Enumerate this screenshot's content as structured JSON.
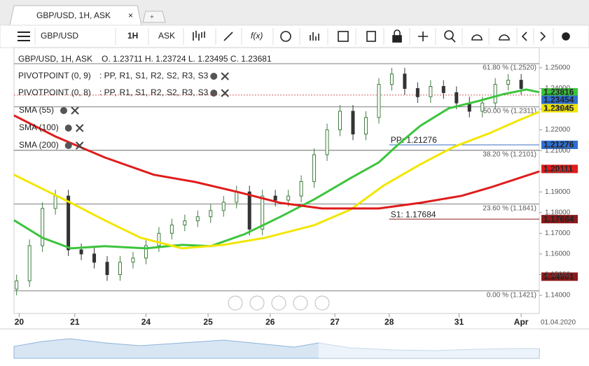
{
  "tab": {
    "title": "GBP/USD, 1H, ASK",
    "close": "×",
    "add": "+"
  },
  "toolbar": {
    "symbol": "GBP/USD",
    "interval": "1H",
    "price_type": "ASK",
    "function": "f(x)"
  },
  "legend": {
    "instrument": "GBP/USD, 1H, ASK",
    "ohlc": "O. 1.23711 H. 1.23724 L. 1.23495 C. 1.23681",
    "pivots": [
      {
        "name": "PIVOTPOINT (0, 9)"
      },
      {
        "name": "PIVOTPOINT (0, 8)"
      }
    ],
    "pivot_items": [
      {
        "text": ": PP,",
        "color": "#3a6fc4"
      },
      {
        "text": "R1,",
        "color": "#2e9e2e"
      },
      {
        "text": "S1,",
        "color": "#c62828"
      },
      {
        "text": "R2,",
        "color": "#c62828"
      },
      {
        "text": "S2,",
        "color": "#e08a00"
      },
      {
        "text": "R3,",
        "color": "#e0b000"
      },
      {
        "text": "S3",
        "color": "#e0b000"
      }
    ]
  },
  "chart_data": {
    "type": "candlestick",
    "xlim": [
      0,
      203
    ],
    "xticks": [
      {
        "value": 2,
        "label": "20"
      },
      {
        "value": 23.5,
        "label": "21"
      },
      {
        "value": 51,
        "label": "24"
      },
      {
        "value": 75,
        "label": "25"
      },
      {
        "value": 99,
        "label": "26"
      },
      {
        "value": 124,
        "label": "27"
      },
      {
        "value": 145,
        "label": "28"
      },
      {
        "value": 172,
        "label": "31"
      },
      {
        "value": 196,
        "label": "Apr"
      }
    ],
    "date_label": "01.04.2020",
    "ylim": [
      1.1312,
      1.2591
    ],
    "yticks": [
      {
        "value": 1.14,
        "label": "1.14000"
      },
      {
        "value": 1.15,
        "label": "1.15000"
      },
      {
        "value": 1.16,
        "label": "1.16000"
      },
      {
        "value": 1.17,
        "label": "1.17000"
      },
      {
        "value": 1.18,
        "label": "1.18000"
      },
      {
        "value": 1.19,
        "label": "1.19000"
      },
      {
        "value": 1.2,
        "label": "1.20000"
      },
      {
        "value": 1.21,
        "label": "1.21000"
      },
      {
        "value": 1.22,
        "label": "1.22000"
      },
      {
        "value": 1.23,
        "label": "1.23000"
      },
      {
        "value": 1.24,
        "label": "1.24000"
      },
      {
        "value": 1.25,
        "label": "1.25000"
      }
    ],
    "up_color": "#3f7d3f",
    "down_color": "#333333",
    "candles": {
      "x": [
        1,
        6,
        11,
        16,
        21,
        26,
        31,
        36,
        41,
        46,
        51,
        56,
        61,
        66,
        71,
        76,
        81,
        86,
        91,
        96,
        101,
        106,
        111,
        116,
        121,
        126,
        131,
        136,
        141,
        146,
        151,
        156,
        161,
        166,
        171,
        176,
        181,
        186,
        191,
        196
      ],
      "open": [
        1.143,
        1.147,
        1.164,
        1.182,
        1.188,
        1.162,
        1.16,
        1.156,
        1.15,
        1.156,
        1.158,
        1.164,
        1.17,
        1.174,
        1.176,
        1.178,
        1.181,
        1.185,
        1.19,
        1.172,
        1.188,
        1.186,
        1.188,
        1.195,
        1.208,
        1.22,
        1.229,
        1.218,
        1.226,
        1.242,
        1.247,
        1.24,
        1.236,
        1.241,
        1.238,
        1.233,
        1.229,
        1.233,
        1.242,
        1.244
      ],
      "high": [
        1.15,
        1.167,
        1.185,
        1.191,
        1.191,
        1.165,
        1.163,
        1.159,
        1.159,
        1.161,
        1.167,
        1.173,
        1.177,
        1.179,
        1.181,
        1.184,
        1.188,
        1.193,
        1.193,
        1.191,
        1.191,
        1.191,
        1.198,
        1.211,
        1.223,
        1.232,
        1.232,
        1.229,
        1.245,
        1.25,
        1.25,
        1.243,
        1.244,
        1.244,
        1.241,
        1.236,
        1.236,
        1.245,
        1.247,
        1.247
      ],
      "low": [
        1.14,
        1.144,
        1.161,
        1.179,
        1.159,
        1.157,
        1.153,
        1.147,
        1.147,
        1.153,
        1.155,
        1.161,
        1.167,
        1.171,
        1.173,
        1.175,
        1.178,
        1.182,
        1.169,
        1.169,
        1.183,
        1.183,
        1.185,
        1.192,
        1.205,
        1.217,
        1.215,
        1.215,
        1.223,
        1.239,
        1.237,
        1.233,
        1.233,
        1.235,
        1.23,
        1.226,
        1.226,
        1.23,
        1.239,
        1.237
      ],
      "close": [
        1.147,
        1.164,
        1.182,
        1.188,
        1.162,
        1.16,
        1.156,
        1.15,
        1.156,
        1.158,
        1.164,
        1.17,
        1.174,
        1.176,
        1.178,
        1.181,
        1.185,
        1.19,
        1.172,
        1.188,
        1.186,
        1.188,
        1.195,
        1.208,
        1.22,
        1.229,
        1.218,
        1.226,
        1.242,
        1.247,
        1.24,
        1.236,
        1.241,
        1.238,
        1.233,
        1.229,
        1.233,
        1.242,
        1.244,
        1.24
      ]
    },
    "series": [
      {
        "name": "SMA (55)",
        "color": "#3cc43c",
        "x": [
          0,
          11,
          22,
          35,
          51,
          65,
          76,
          89,
          103,
          116,
          130,
          141,
          149,
          157,
          168,
          179,
          189,
          198,
          203
        ],
        "values": [
          1.1763,
          1.1678,
          1.1627,
          1.1638,
          1.1627,
          1.1644,
          1.1638,
          1.1695,
          1.178,
          1.1864,
          1.1966,
          1.2043,
          1.2135,
          1.2219,
          1.2304,
          1.2338,
          1.2372,
          1.2395,
          1.2382
        ]
      },
      {
        "name": "SMA (100)",
        "color": "#f2e600",
        "x": [
          0,
          11,
          22,
          35,
          49,
          65,
          81,
          97,
          116,
          130,
          143,
          157,
          170,
          184,
          195,
          203
        ],
        "values": [
          1.1983,
          1.1915,
          1.1847,
          1.1763,
          1.1678,
          1.1627,
          1.1644,
          1.1678,
          1.1739,
          1.1814,
          1.1932,
          1.2033,
          1.2118,
          1.2185,
          1.2246,
          1.2287
        ]
      },
      {
        "name": "SMA (200)",
        "color": "#e01b1b",
        "x": [
          0,
          16,
          35,
          54,
          70,
          87,
          103,
          119,
          141,
          157,
          173,
          184,
          195,
          203
        ],
        "values": [
          1.227,
          1.2168,
          1.2067,
          1.1983,
          1.1948,
          1.1898,
          1.1847,
          1.182,
          1.182,
          1.1847,
          1.1881,
          1.1921,
          1.1966,
          1.1999
        ]
      }
    ],
    "fib_levels": [
      {
        "label": "61.80 % (1.2520)",
        "value": 1.252
      },
      {
        "label": "50.00 % (1.2311)",
        "value": 1.2311
      },
      {
        "label": "38.20 % (1.2101)",
        "value": 1.2101
      },
      {
        "label": "23.60 % (1.1841)",
        "value": 1.1841
      },
      {
        "label": "0.00 % (1.1421)",
        "value": 1.1421
      }
    ],
    "pivot_levels": [
      {
        "label": "PP: 1.21276",
        "value": 1.21276,
        "color": "#3a6fc4",
        "x_start": 145
      },
      {
        "label": "S1: 1.17684",
        "value": 1.17684,
        "color": "#8b1a1a",
        "x_start": 145
      }
    ],
    "price_line": 1.23681,
    "badges": [
      {
        "value": 1.23816,
        "color": "#3cc43c",
        "text_color": "#ffffff"
      },
      {
        "value": 1.23454,
        "color": "#2f6fd0",
        "text_color": "#ffffff"
      },
      {
        "value": 1.23045,
        "color": "#f2e600",
        "text_color": "#000000"
      },
      {
        "value": 1.21276,
        "color": "#2f6fd0",
        "text_color": "#ffffff"
      },
      {
        "value": 1.20111,
        "color": "#e01b1b",
        "text_color": "#ffffff"
      },
      {
        "value": 1.17684,
        "color": "#8b1a1a",
        "text_color": "#ffffff"
      },
      {
        "value": 1.14901,
        "color": "#8b1a1a",
        "text_color": "#ffffff"
      }
    ]
  }
}
